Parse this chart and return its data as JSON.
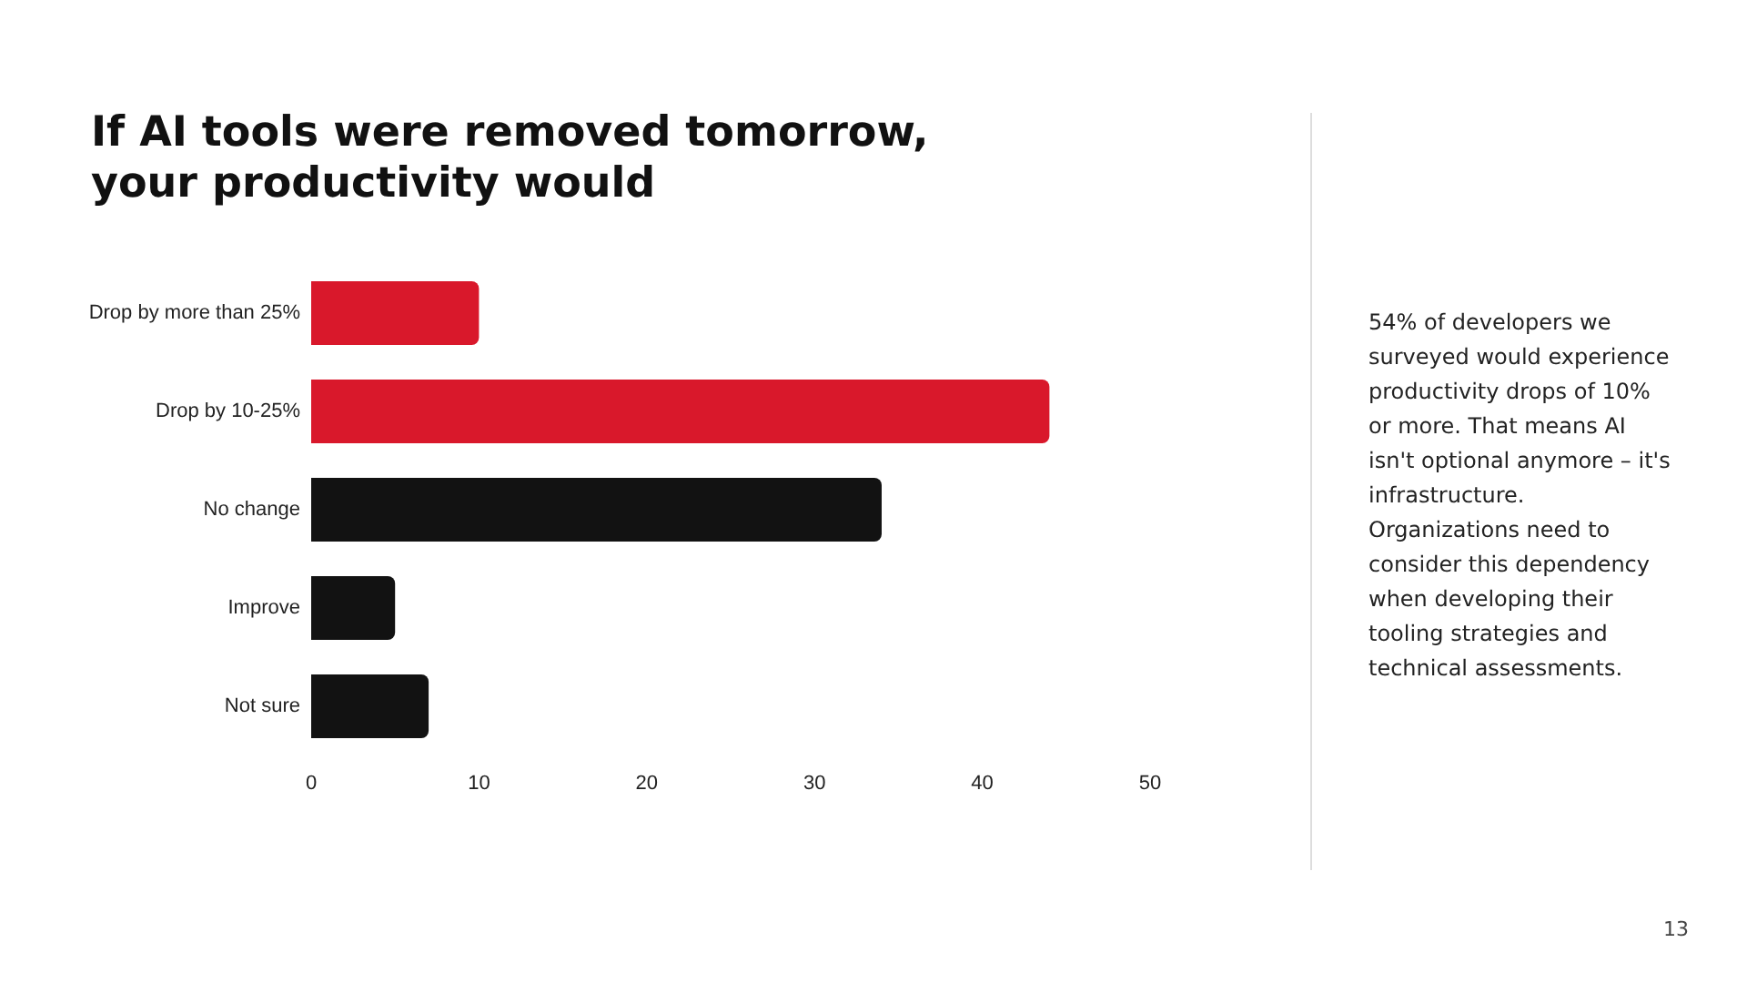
{
  "chart_data": {
    "type": "bar",
    "orientation": "horizontal",
    "title": "If AI tools were removed tomorrow, your productivity would",
    "categories": [
      "Drop by more than 25%",
      "Drop by 10-25%",
      "No change",
      "Improve",
      "Not sure"
    ],
    "values": [
      10,
      44,
      34,
      5,
      7
    ],
    "colors": [
      "#d9182b",
      "#d9182b",
      "#121212",
      "#121212",
      "#121212"
    ],
    "xlim": [
      0,
      50
    ],
    "xticks": [
      0,
      10,
      20,
      30,
      40,
      50
    ],
    "annotations": [
      "54% of developers we surveyed would experience productivity drops of 10% or more. That means AI isn't optional anymore – it's infrastructure. Organizations need to consider this dependency when developing their tooling strategies and technical assessments.",
      "13"
    ]
  }
}
